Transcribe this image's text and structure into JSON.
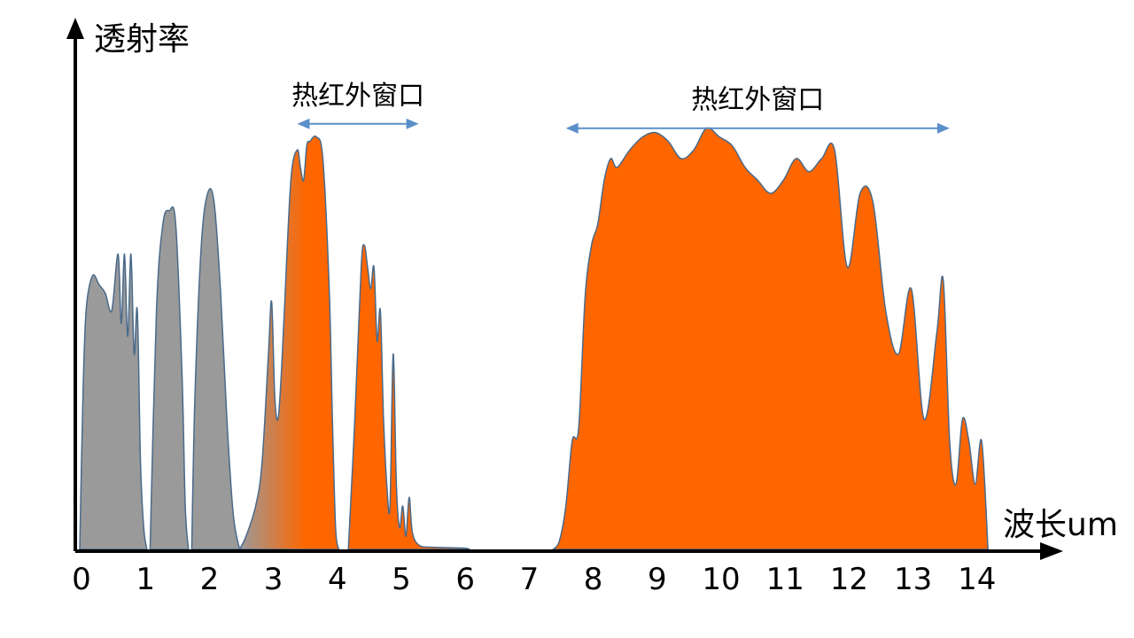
{
  "chart_data": {
    "type": "area",
    "title": "",
    "xlabel": "波长um",
    "ylabel": "透射率",
    "xlim": [
      0,
      15
    ],
    "ylim": [
      0,
      1
    ],
    "x_ticks": [
      "0",
      "1",
      "2",
      "3",
      "4",
      "5",
      "6",
      "7",
      "8",
      "9",
      "10",
      "11",
      "12",
      "13",
      "14"
    ],
    "grid": false,
    "legend": "none",
    "colors": {
      "window": "#ff6600",
      "other": "#9a9a9a",
      "outline": "#4a6a8a",
      "arrow": "#5b8fc9",
      "axis": "#000000"
    },
    "series": [
      {
        "role": "other",
        "x": [
          0,
          0.05,
          0.1,
          0.2,
          0.3,
          0.4,
          0.5,
          0.6,
          0.65,
          0.7,
          0.75,
          0.8,
          0.85,
          0.9,
          0.95,
          1.0,
          1.05
        ],
        "y": [
          0,
          0.35,
          0.55,
          0.63,
          0.61,
          0.59,
          0.55,
          0.68,
          0.52,
          0.68,
          0.49,
          0.68,
          0.45,
          0.55,
          0.2,
          0.05,
          0
        ]
      },
      {
        "role": "other",
        "x": [
          1.1,
          1.2,
          1.3,
          1.4,
          1.5,
          1.6,
          1.65,
          1.7
        ],
        "y": [
          0,
          0.55,
          0.75,
          0.78,
          0.75,
          0.4,
          0.1,
          0
        ]
      },
      {
        "role": "other",
        "x": [
          1.75,
          1.8,
          1.9,
          2.0,
          2.1,
          2.2,
          2.3,
          2.4,
          2.5
        ],
        "y": [
          0,
          0.35,
          0.7,
          0.82,
          0.8,
          0.6,
          0.3,
          0.08,
          0
        ]
      },
      {
        "role": "transition",
        "x": [
          2.5,
          2.6,
          2.75,
          2.85,
          2.95,
          3.0,
          3.05,
          3.1,
          3.15,
          3.2,
          3.3,
          3.4,
          3.45,
          3.5,
          3.55,
          3.6,
          3.7,
          3.8,
          3.9,
          3.95,
          4.0,
          4.05
        ],
        "y": [
          0,
          0.03,
          0.1,
          0.2,
          0.45,
          0.57,
          0.35,
          0.3,
          0.4,
          0.55,
          0.85,
          0.92,
          0.88,
          0.85,
          0.93,
          0.94,
          0.95,
          0.9,
          0.6,
          0.3,
          0.05,
          0
        ]
      },
      {
        "role": "window",
        "x": [
          4.2,
          4.3,
          4.4,
          4.45,
          4.5,
          4.55,
          4.6,
          4.65,
          4.7,
          4.75,
          4.8,
          4.85,
          4.9,
          4.95,
          5.0,
          5.05,
          5.1,
          5.15,
          5.2,
          5.3,
          5.5,
          6.0,
          6.1
        ],
        "y": [
          0,
          0.3,
          0.65,
          0.7,
          0.65,
          0.6,
          0.65,
          0.48,
          0.55,
          0.3,
          0.15,
          0.1,
          0.45,
          0.15,
          0.05,
          0.1,
          0.03,
          0.12,
          0.04,
          0.01,
          0.005,
          0.003,
          0
        ]
      },
      {
        "role": "window",
        "x": [
          7.4,
          7.5,
          7.6,
          7.7,
          7.8,
          7.9,
          8.0,
          8.1,
          8.2,
          8.3,
          8.4,
          8.6,
          8.8,
          9.0,
          9.2,
          9.4,
          9.6,
          9.8,
          10.0,
          10.2,
          10.4,
          10.6,
          10.8,
          11.0,
          11.2,
          11.4,
          11.6,
          11.8,
          12.0,
          12.2,
          12.4,
          12.6,
          12.8,
          13.0,
          13.2,
          13.4,
          13.5,
          13.6,
          13.7,
          13.8,
          13.9,
          14.0,
          14.1,
          14.2
        ],
        "y": [
          0,
          0.02,
          0.1,
          0.25,
          0.28,
          0.58,
          0.7,
          0.75,
          0.85,
          0.9,
          0.88,
          0.92,
          0.95,
          0.96,
          0.94,
          0.9,
          0.92,
          0.97,
          0.95,
          0.93,
          0.88,
          0.85,
          0.82,
          0.85,
          0.9,
          0.87,
          0.9,
          0.92,
          0.65,
          0.82,
          0.8,
          0.55,
          0.45,
          0.6,
          0.3,
          0.5,
          0.62,
          0.25,
          0.15,
          0.3,
          0.25,
          0.15,
          0.25,
          0
        ]
      }
    ],
    "annotations": [
      {
        "text": "热红外窗口",
        "x_from": 3.4,
        "x_to": 5.3,
        "y": 0.98
      },
      {
        "text": "热红外窗口",
        "x_from": 7.6,
        "x_to": 13.6,
        "y": 0.97
      }
    ]
  }
}
